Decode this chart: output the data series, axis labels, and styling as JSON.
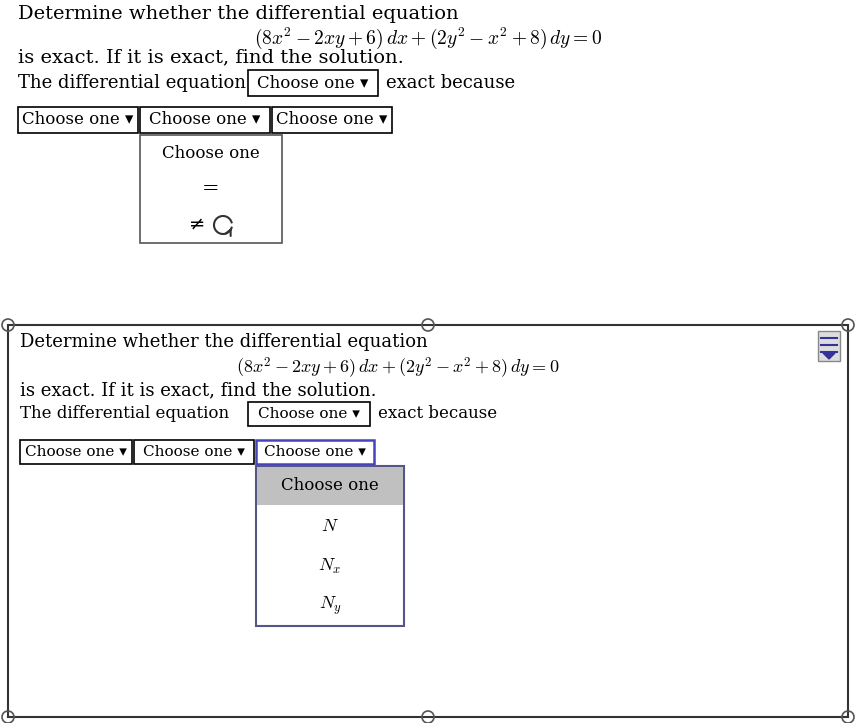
{
  "bg_color": "#ffffff",
  "top_section": {
    "problem_line1": "Determine whether the differential equation",
    "problem_line2": "$(8x^2 - 2xy + 6)\\,dx + (2y^2 - x^2 + 8)\\,dy = 0$",
    "problem_line3": "is exact. If it is exact, find the solution.",
    "popup_items": [
      "Choose one",
      "=",
      "≠"
    ]
  },
  "bottom_section": {
    "problem_line1": "Determine whether the differential equation",
    "problem_line2": "$(8x^2 - 2xy + 6)\\,dx + (2y^2 - x^2 + 8)\\,dy = 0$",
    "problem_line3": "is exact. If it is exact, find the solution.",
    "popup_items": [
      "Choose one",
      "N",
      "N_x",
      "N_y"
    ]
  },
  "dropdown_text": "Choose one ▾",
  "exact_because": "exact because",
  "the_diff_eq": "The differential equation",
  "border_color": "#333333",
  "dropdown_border": "#000000",
  "bg_color_popup_header": "#c0c0c0",
  "popup_border_color": "#555588",
  "active_dropdown_border": "#4444bb",
  "scrollbar_line_color": "#333399"
}
